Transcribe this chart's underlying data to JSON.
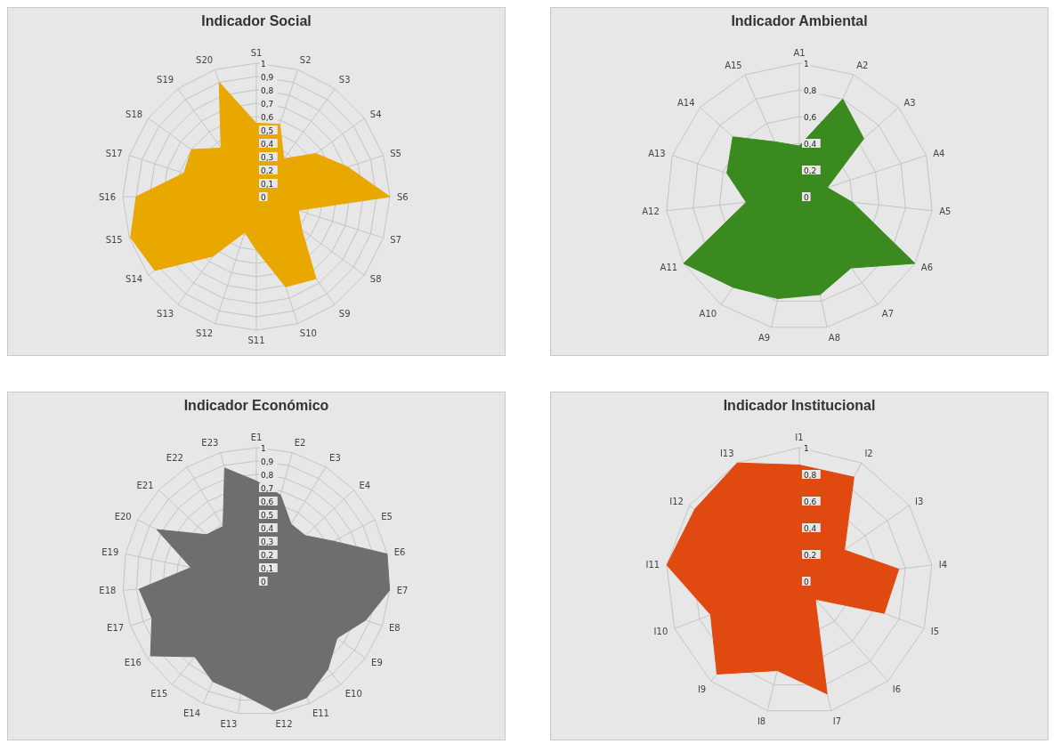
{
  "chart_data": [
    {
      "type": "radar",
      "title": "Indicador Social",
      "categories": [
        "S1",
        "S2",
        "S3",
        "S4",
        "S5",
        "S6",
        "S7",
        "S8",
        "S9",
        "S10",
        "S11",
        "S12",
        "S13",
        "S14",
        "S15",
        "S16",
        "S17",
        "S18",
        "S19",
        "S20"
      ],
      "series": [
        {
          "color": "#e8a800",
          "values": [
            0.55,
            0.57,
            0.35,
            0.55,
            0.72,
            1.0,
            0.33,
            0.42,
            0.76,
            0.71,
            0.4,
            0.28,
            0.55,
            0.94,
            0.99,
            0.9,
            0.57,
            0.6,
            0.45,
            0.9
          ]
        }
      ],
      "ylim": [
        0,
        1
      ],
      "yticks": [
        {
          "value": 0,
          "label": "0"
        },
        {
          "value": 0.1,
          "label": "0,1"
        },
        {
          "value": 0.2,
          "label": "0,2"
        },
        {
          "value": 0.3,
          "label": "0,3"
        },
        {
          "value": 0.4,
          "label": "0,4"
        },
        {
          "value": 0.5,
          "label": "0,5"
        },
        {
          "value": 0.6,
          "label": "0,6"
        },
        {
          "value": 0.7,
          "label": "0,7"
        },
        {
          "value": 0.8,
          "label": "0,8"
        },
        {
          "value": 0.9,
          "label": "0,9"
        },
        {
          "value": 1,
          "label": "1"
        }
      ],
      "grid": true
    },
    {
      "type": "radar",
      "title": "Indicador Ambiental",
      "categories": [
        "A1",
        "A2",
        "A3",
        "A4",
        "A5",
        "A6",
        "A7",
        "A8",
        "A9",
        "A10",
        "A11",
        "A12",
        "A13",
        "A14",
        "A15"
      ],
      "series": [
        {
          "color": "#3a8a1f",
          "values": [
            0.38,
            0.8,
            0.65,
            0.22,
            0.4,
            1.0,
            0.66,
            0.75,
            0.78,
            0.84,
            1.0,
            0.4,
            0.57,
            0.67,
            0.45
          ]
        }
      ],
      "ylim": [
        0,
        1
      ],
      "yticks": [
        {
          "value": 0,
          "label": "0"
        },
        {
          "value": 0.2,
          "label": "0,2"
        },
        {
          "value": 0.4,
          "label": "0,4"
        },
        {
          "value": 0.6,
          "label": "0,6"
        },
        {
          "value": 0.8,
          "label": "0,8"
        },
        {
          "value": 1,
          "label": "1"
        }
      ],
      "grid": true
    },
    {
      "type": "radar",
      "title": "Indicador Económico",
      "categories": [
        "E1",
        "E2",
        "E3",
        "E4",
        "E5",
        "E6",
        "E7",
        "E8",
        "E9",
        "E10",
        "E11",
        "E12",
        "E13",
        "E14",
        "E15",
        "E16",
        "E17",
        "E18",
        "E19",
        "E20",
        "E21",
        "E22",
        "E23"
      ],
      "series": [
        {
          "color": "#6e6e6e",
          "values": [
            0.75,
            0.67,
            0.5,
            0.5,
            0.65,
            1.0,
            1.0,
            0.87,
            0.74,
            0.85,
            0.95,
            0.98,
            0.85,
            0.82,
            0.73,
            0.97,
            0.83,
            0.88,
            0.5,
            0.84,
            0.51,
            0.48,
            0.88
          ]
        }
      ],
      "ylim": [
        0,
        1
      ],
      "yticks": [
        {
          "value": 0,
          "label": "0"
        },
        {
          "value": 0.1,
          "label": "0,1"
        },
        {
          "value": 0.2,
          "label": "0,2"
        },
        {
          "value": 0.3,
          "label": "0,3"
        },
        {
          "value": 0.4,
          "label": "0,4"
        },
        {
          "value": 0.5,
          "label": "0,5"
        },
        {
          "value": 0.6,
          "label": "0,6"
        },
        {
          "value": 0.7,
          "label": "0,7"
        },
        {
          "value": 0.8,
          "label": "0,8"
        },
        {
          "value": 0.9,
          "label": "0,9"
        },
        {
          "value": 1,
          "label": "1"
        }
      ],
      "grid": true
    },
    {
      "type": "radar",
      "title": "Indicador Institucional",
      "categories": [
        "I1",
        "I2",
        "I3",
        "I4",
        "I5",
        "I6",
        "I7",
        "I8",
        "I9",
        "I10",
        "I11",
        "I12",
        "I13"
      ],
      "series": [
        {
          "color": "#e04a10",
          "values": [
            0.87,
            0.88,
            0.41,
            0.75,
            0.68,
            0.18,
            0.87,
            0.69,
            0.93,
            0.71,
            1.0,
            0.95,
            1.0
          ]
        }
      ],
      "ylim": [
        0,
        1
      ],
      "yticks": [
        {
          "value": 0,
          "label": "0"
        },
        {
          "value": 0.2,
          "label": "0,2"
        },
        {
          "value": 0.4,
          "label": "0,4"
        },
        {
          "value": 0.6,
          "label": "0,6"
        },
        {
          "value": 0.8,
          "label": "0,8"
        },
        {
          "value": 1,
          "label": "1"
        }
      ],
      "grid": true
    }
  ]
}
